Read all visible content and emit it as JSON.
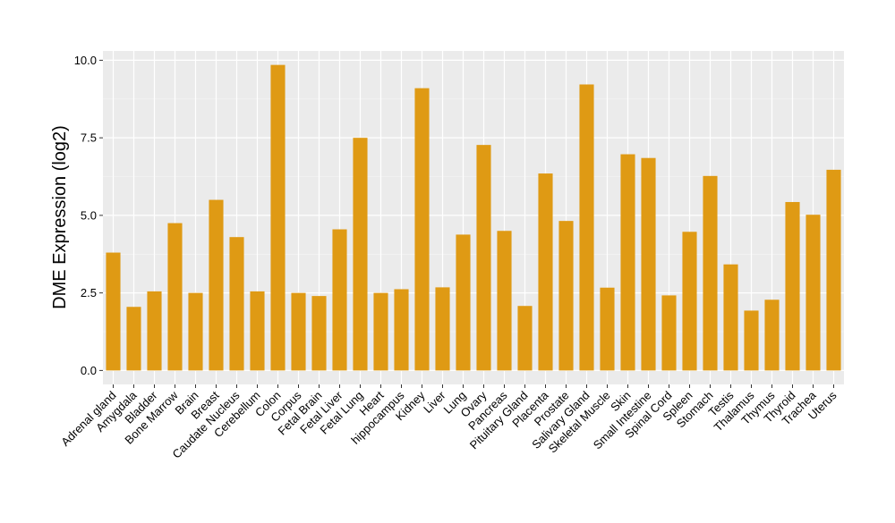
{
  "chart_data": {
    "type": "bar",
    "ylabel": "DME Expression (log2)",
    "xlabel": "",
    "ylim": [
      -0.45,
      10.3
    ],
    "yticks": [
      0.0,
      2.5,
      5.0,
      7.5,
      10.0
    ],
    "ytick_labels": [
      "0.0",
      "2.5",
      "5.0",
      "7.5",
      "10.0"
    ],
    "grid": true,
    "bar_color": "#DF9A14",
    "panel_color": "#EBEBEB",
    "categories": [
      "Adrenal gland",
      "Amygdala",
      "Bladder",
      "Bone Marrow",
      "Brain",
      "Breast",
      "Caudate Nucleus",
      "Cerebellum",
      "Colon",
      "Corpus",
      "Fetal Brain",
      "Fetal Liver",
      "Fetal Lung",
      "Heart",
      "hippocampus",
      "Kidney",
      "Liver",
      "Lung",
      "Ovary",
      "Pancreas",
      "Pituitary Gland",
      "Placenta",
      "Prostate",
      "Salivary Gland",
      "Skeletal Muscle",
      "Skin",
      "Small Intestine",
      "Spinal Cord",
      "Spleen",
      "Stomach",
      "Testis",
      "Thalamus",
      "Thymus",
      "Thyroid",
      "Trachea",
      "Uterus"
    ],
    "values": [
      3.8,
      2.05,
      2.55,
      4.75,
      2.5,
      5.5,
      4.3,
      2.55,
      9.85,
      2.5,
      2.4,
      4.55,
      7.5,
      2.5,
      2.62,
      9.1,
      2.68,
      4.38,
      7.27,
      4.5,
      2.08,
      6.35,
      4.82,
      9.22,
      2.67,
      6.97,
      6.85,
      2.42,
      4.47,
      6.27,
      3.42,
      1.93,
      2.28,
      5.43,
      5.02,
      6.47
    ]
  }
}
